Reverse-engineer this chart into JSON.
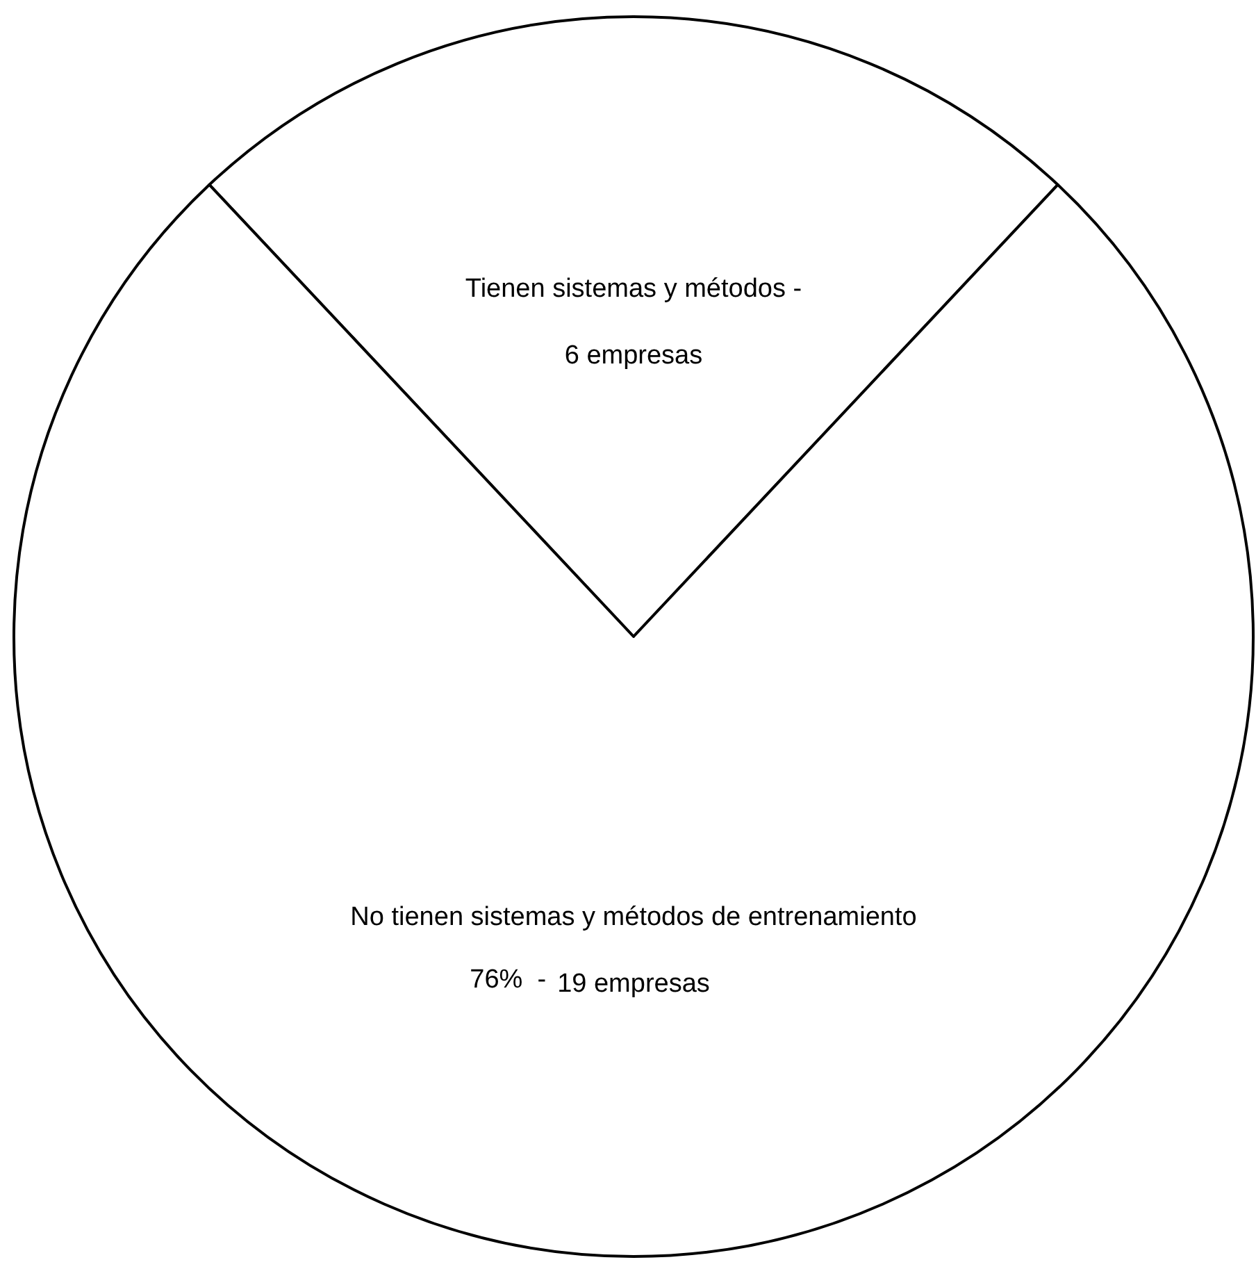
{
  "chart_data": {
    "type": "pie",
    "categories": [
      "Tienen sistemas y métodos -",
      "No tienen sistemas y métodos de entrenamiento"
    ],
    "values": [
      6,
      19
    ],
    "value_labels": [
      "6 empresas",
      "19 empresas"
    ],
    "annotations": [
      "76%  -"
    ],
    "colors": [
      "#ffffff",
      "#ffffff"
    ],
    "legend": false
  }
}
